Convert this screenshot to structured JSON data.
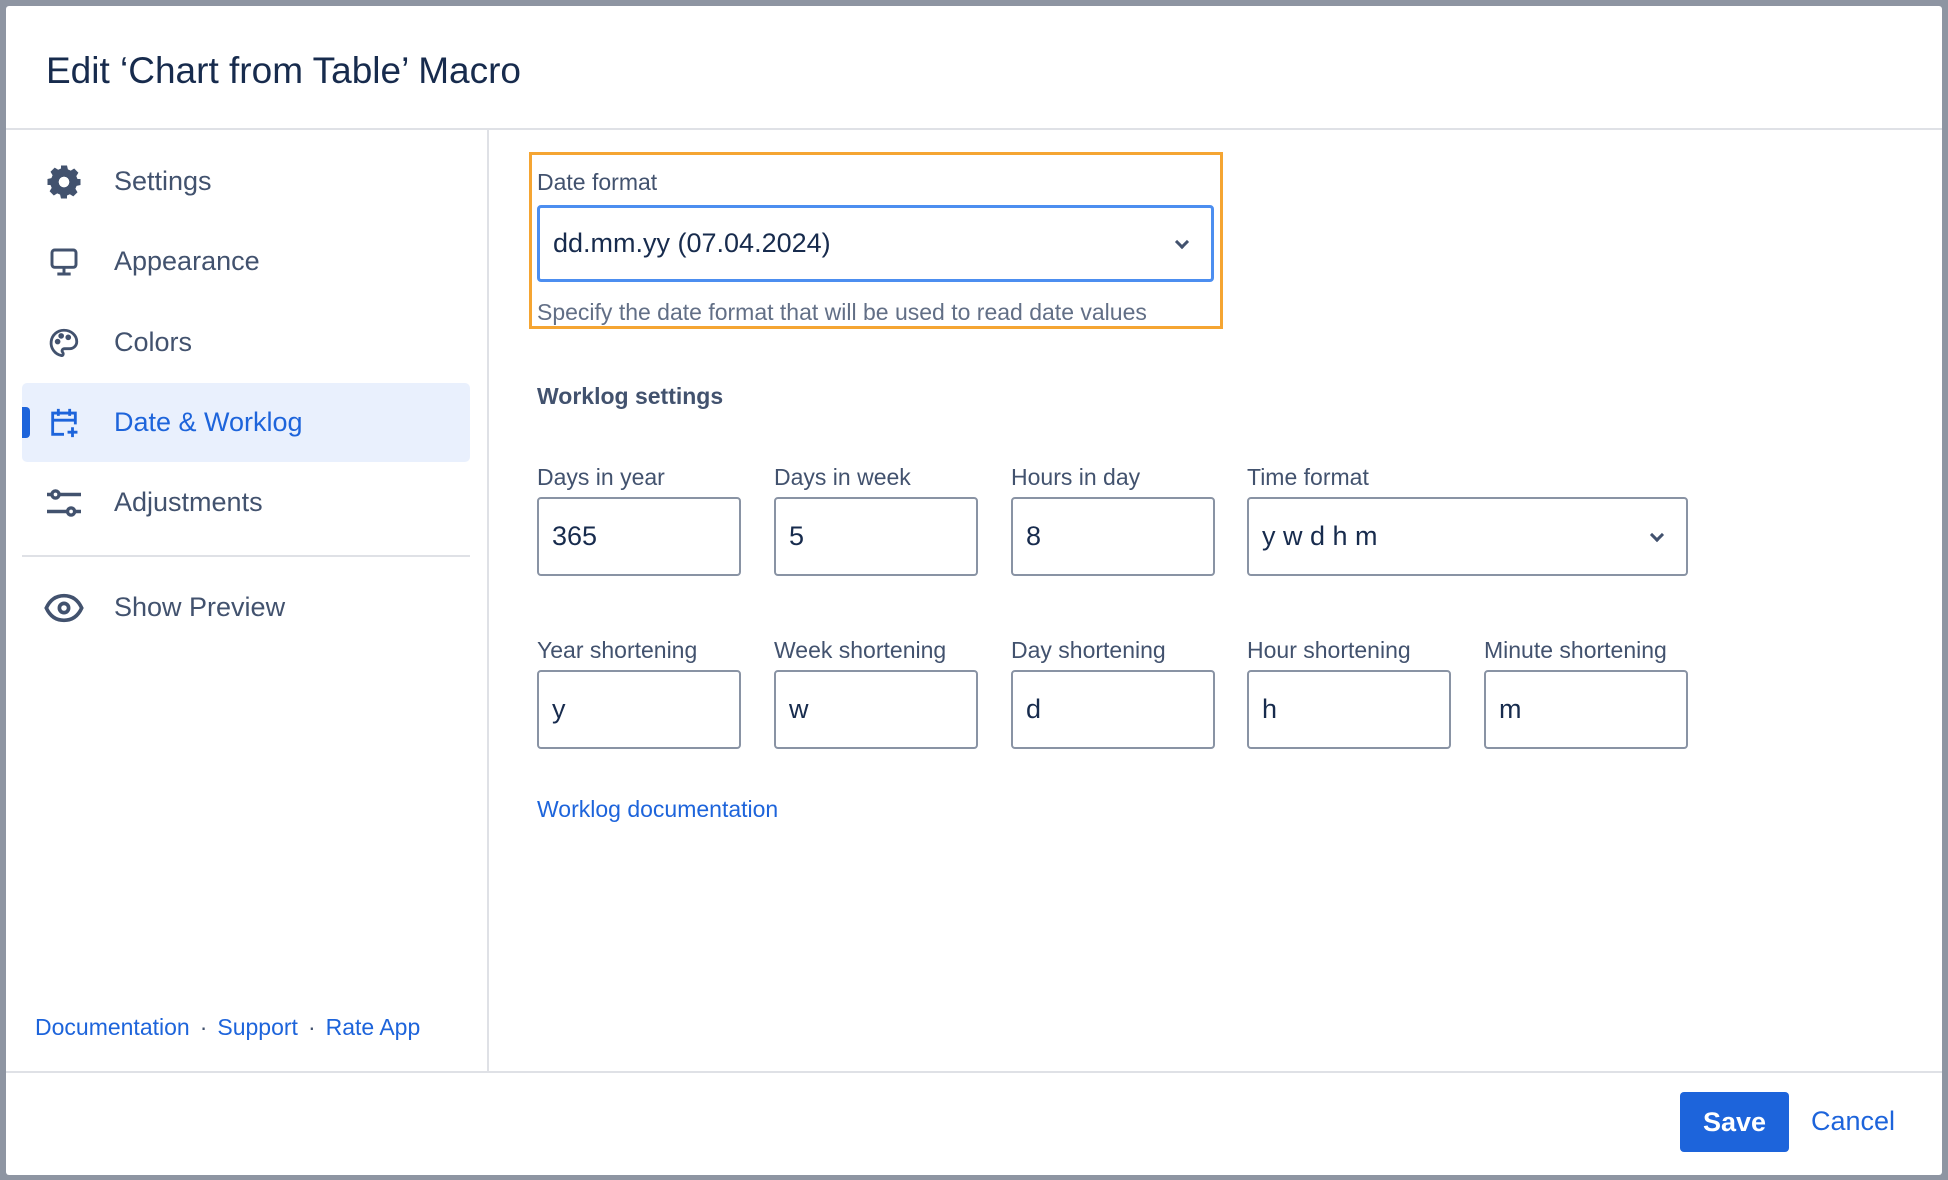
{
  "dialog": {
    "title": "Edit ‘Chart from Table’ Macro"
  },
  "sidebar": {
    "items": [
      {
        "label": "Settings",
        "icon": "gear-icon"
      },
      {
        "label": "Appearance",
        "icon": "monitor-icon"
      },
      {
        "label": "Colors",
        "icon": "palette-icon"
      },
      {
        "label": "Date & Worklog",
        "icon": "calendar-plus-icon",
        "active": true
      },
      {
        "label": "Adjustments",
        "icon": "sliders-icon"
      }
    ],
    "preview": {
      "label": "Show Preview",
      "icon": "eye-icon"
    },
    "links": [
      "Documentation",
      "Support",
      "Rate App"
    ],
    "separator": "·"
  },
  "date_format": {
    "label": "Date format",
    "value": "dd.mm.yy (07.04.2024)",
    "help": "Specify the date format that will be used to read date values"
  },
  "worklog": {
    "title": "Worklog settings",
    "days_in_year": {
      "label": "Days in year",
      "value": "365"
    },
    "days_in_week": {
      "label": "Days in week",
      "value": "5"
    },
    "hours_in_day": {
      "label": "Hours in day",
      "value": "8"
    },
    "time_format": {
      "label": "Time format",
      "value": "y w d h m"
    },
    "year_short": {
      "label": "Year shortening",
      "value": "y"
    },
    "week_short": {
      "label": "Week shortening",
      "value": "w"
    },
    "day_short": {
      "label": "Day shortening",
      "value": "d"
    },
    "hour_short": {
      "label": "Hour shortening",
      "value": "h"
    },
    "minute_short": {
      "label": "Minute shortening",
      "value": "m"
    },
    "doc_link": "Worklog documentation"
  },
  "footer": {
    "save": "Save",
    "cancel": "Cancel"
  },
  "colors": {
    "accent": "#1d64db",
    "highlight": "#f5a532",
    "active_bg": "#e9f0fd"
  }
}
